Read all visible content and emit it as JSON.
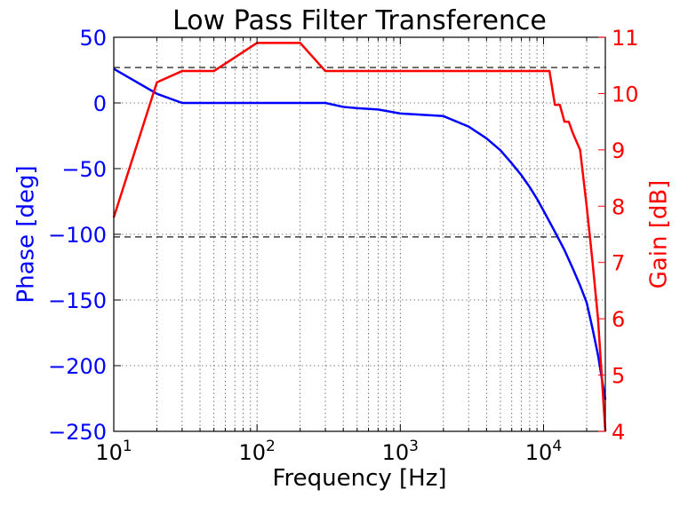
{
  "chart_data": {
    "type": "line",
    "title": "Low Pass Filter Transference",
    "xlabel": "Frequency [Hz]",
    "ylabel_left": "Phase [deg]",
    "ylabel_right": "Gain [dB]",
    "xscale": "log",
    "xlim": [
      10,
      27000
    ],
    "ylim_left": [
      -250,
      50
    ],
    "ylim_right": [
      4,
      11
    ],
    "xticks": [
      {
        "value": 10,
        "base": "10",
        "exp": "1"
      },
      {
        "value": 100,
        "base": "10",
        "exp": "2"
      },
      {
        "value": 1000,
        "base": "10",
        "exp": "3"
      },
      {
        "value": 10000,
        "base": "10",
        "exp": "4"
      }
    ],
    "yticks_left": [
      {
        "value": 50,
        "label": "50"
      },
      {
        "value": 0,
        "label": "0"
      },
      {
        "value": -50,
        "label": "−50"
      },
      {
        "value": -100,
        "label": "−100"
      },
      {
        "value": -150,
        "label": "−150"
      },
      {
        "value": -200,
        "label": "−200"
      },
      {
        "value": -250,
        "label": "−250"
      }
    ],
    "yticks_right": [
      {
        "value": 11,
        "label": "11"
      },
      {
        "value": 10,
        "label": "10"
      },
      {
        "value": 9,
        "label": "9"
      },
      {
        "value": 8,
        "label": "8"
      },
      {
        "value": 7,
        "label": "7"
      },
      {
        "value": 6,
        "label": "6"
      },
      {
        "value": 5,
        "label": "5"
      },
      {
        "value": 4,
        "label": "4"
      }
    ],
    "grid": true,
    "colors": {
      "phase": "#0000ff",
      "gain": "#ff0000",
      "reference": "#000000",
      "grid": "#555555",
      "text": "#000000"
    },
    "reference_lines_phase": [
      27,
      -102
    ],
    "series": [
      {
        "axis": "left",
        "color": "#0000ff",
        "x": [
          10,
          20,
          30,
          100,
          200,
          300,
          400,
          500,
          700,
          1000,
          2000,
          3000,
          4000,
          5000,
          6000,
          7000,
          8000,
          9000,
          10000,
          12000,
          14000,
          16000,
          18000,
          20000,
          22000,
          24000,
          27000
        ],
        "y": [
          26,
          7,
          0,
          0,
          0,
          0,
          -3,
          -4,
          -5,
          -8,
          -10,
          -18,
          -27,
          -36,
          -46,
          -55,
          -64,
          -73,
          -82,
          -98,
          -112,
          -126,
          -139,
          -152,
          -172,
          -192,
          -226
        ]
      },
      {
        "axis": "right",
        "color": "#ff0000",
        "x": [
          10,
          20,
          30,
          50,
          100,
          200,
          300,
          1000,
          3000,
          10000,
          11000,
          12000,
          13000,
          14000,
          15000,
          16000,
          18000,
          20000,
          22000,
          24000,
          27000
        ],
        "y": [
          7.8,
          10.2,
          10.4,
          10.4,
          10.9,
          10.9,
          10.4,
          10.4,
          10.4,
          10.4,
          10.4,
          9.8,
          9.8,
          9.5,
          9.5,
          9.3,
          9.0,
          8.0,
          7.0,
          6.0,
          4.0
        ]
      }
    ]
  }
}
